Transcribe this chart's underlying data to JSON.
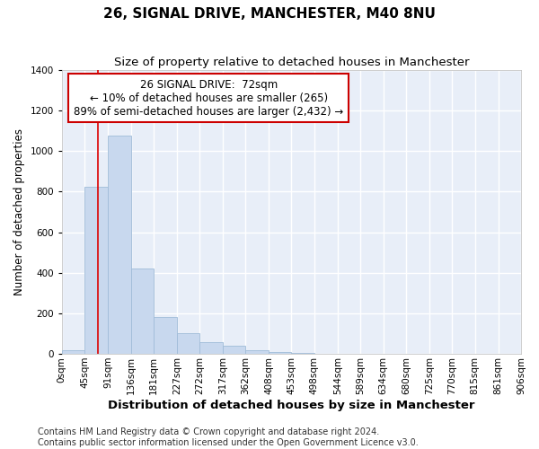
{
  "title": "26, SIGNAL DRIVE, MANCHESTER, M40 8NU",
  "subtitle": "Size of property relative to detached houses in Manchester",
  "xlabel": "Distribution of detached houses by size in Manchester",
  "ylabel": "Number of detached properties",
  "footer_line1": "Contains HM Land Registry data © Crown copyright and database right 2024.",
  "footer_line2": "Contains public sector information licensed under the Open Government Licence v3.0.",
  "annotation_title": "26 SIGNAL DRIVE:  72sqm",
  "annotation_line1": "← 10% of detached houses are smaller (265)",
  "annotation_line2": "89% of semi-detached houses are larger (2,432) →",
  "bar_color": "#c8d8ee",
  "bar_edge_color": "#a0bcd8",
  "vline_color": "#dd0000",
  "annotation_box_edgecolor": "#cc0000",
  "plot_bg_color": "#e8eef8",
  "grid_color": "#ffffff",
  "bin_labels": [
    "0sqm",
    "45sqm",
    "91sqm",
    "136sqm",
    "181sqm",
    "227sqm",
    "272sqm",
    "317sqm",
    "362sqm",
    "408sqm",
    "453sqm",
    "498sqm",
    "544sqm",
    "589sqm",
    "634sqm",
    "680sqm",
    "725sqm",
    "770sqm",
    "815sqm",
    "861sqm",
    "906sqm"
  ],
  "bin_edges": [
    0,
    45,
    91,
    136,
    181,
    227,
    272,
    317,
    362,
    408,
    453,
    498,
    544,
    589,
    634,
    680,
    725,
    770,
    815,
    861,
    906
  ],
  "bar_heights": [
    20,
    825,
    1075,
    420,
    180,
    100,
    58,
    38,
    20,
    8,
    3,
    1,
    1,
    0,
    0,
    0,
    0,
    0,
    0,
    0
  ],
  "vline_x": 72,
  "ylim": [
    0,
    1400
  ],
  "yticks": [
    0,
    200,
    400,
    600,
    800,
    1000,
    1200,
    1400
  ],
  "title_fontsize": 11,
  "subtitle_fontsize": 9.5,
  "xlabel_fontsize": 9.5,
  "ylabel_fontsize": 8.5,
  "tick_fontsize": 7.5,
  "annotation_fontsize": 8.5,
  "footer_fontsize": 7
}
